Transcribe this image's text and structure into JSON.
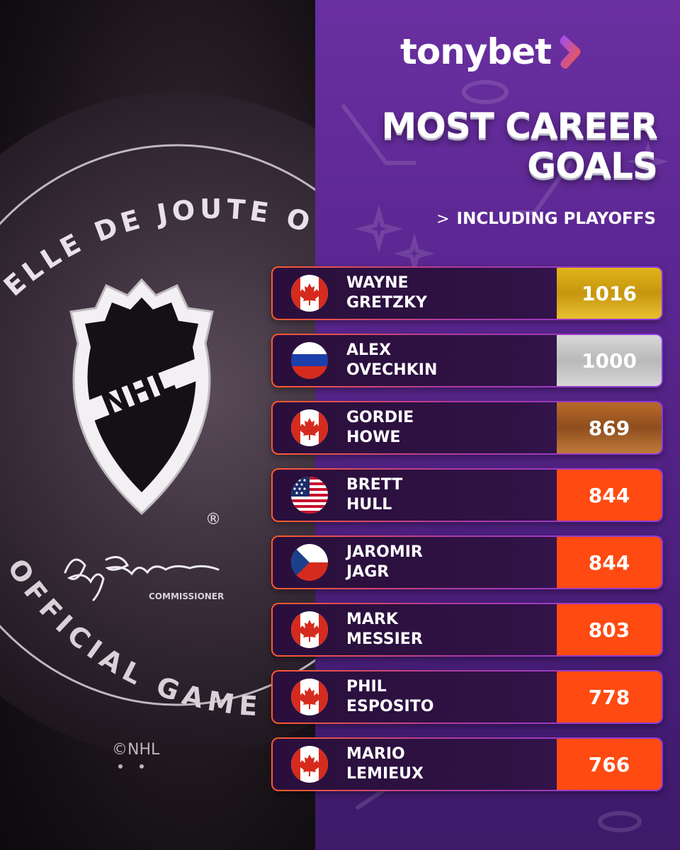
{
  "brand": {
    "name": "tonybet",
    "accent": "#ff5a2a"
  },
  "title_line1": "MOST CAREER",
  "title_line2": "GOALS",
  "subtitle": "INCLUDING PLAYOFFS",
  "puck": {
    "ring_text_top": "ELLE DE JOUTE OFFICI",
    "ring_text_bottom": "OFFICIAL GAME PU",
    "shield_text": "NHL",
    "registered": "®",
    "signature_title": "COMMISSIONER",
    "copyright": "©NHL"
  },
  "players": [
    {
      "first": "WAYNE",
      "last": "GRETZKY",
      "goals": "1016",
      "flag": "canada",
      "medal": "gold"
    },
    {
      "first": "ALEX",
      "last": "OVECHKIN",
      "goals": "1000",
      "flag": "russia",
      "medal": "silver"
    },
    {
      "first": "GORDIE",
      "last": "HOWE",
      "goals": "869",
      "flag": "canada",
      "medal": "bronze"
    },
    {
      "first": "BRETT",
      "last": "HULL",
      "goals": "844",
      "flag": "usa",
      "medal": "orange"
    },
    {
      "first": "JAROMIR",
      "last": "JAGR",
      "goals": "844",
      "flag": "czech",
      "medal": "orange"
    },
    {
      "first": "MARK",
      "last": "MESSIER",
      "goals": "803",
      "flag": "canada",
      "medal": "orange"
    },
    {
      "first": "PHIL",
      "last": "ESPOSITO",
      "goals": "778",
      "flag": "canada",
      "medal": "orange"
    },
    {
      "first": "MARIO",
      "last": "LEMIEUX",
      "goals": "766",
      "flag": "canada",
      "medal": "orange"
    }
  ]
}
